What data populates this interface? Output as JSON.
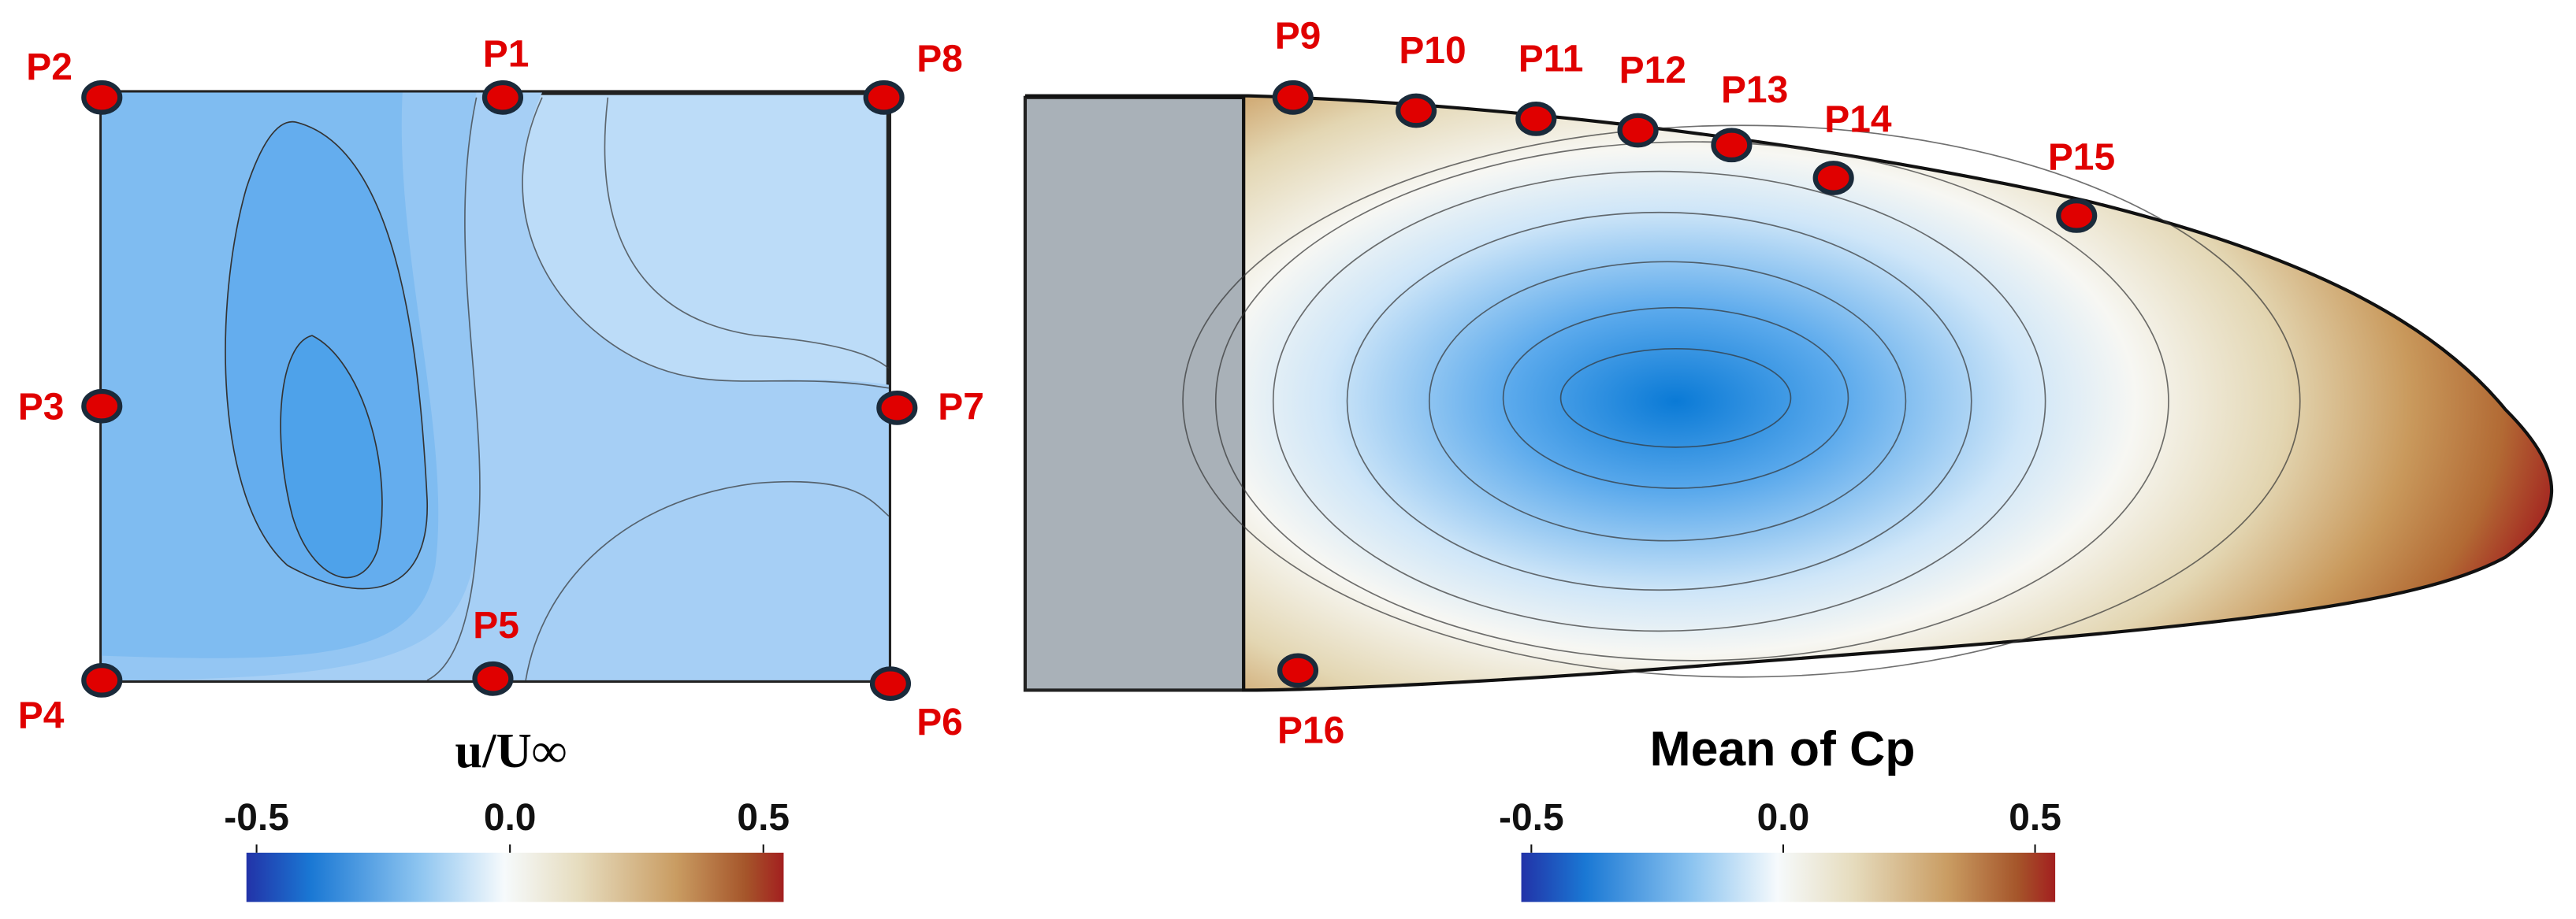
{
  "left_panel": {
    "points": [
      "P1",
      "P2",
      "P3",
      "P4",
      "P5",
      "P6",
      "P7",
      "P8"
    ],
    "colorbar": {
      "title": "u/U∞",
      "range": [
        -0.52,
        0.54
      ],
      "ticks": [
        -0.5,
        {
          "value": 0,
          "label": "0.0"
        },
        0.5
      ]
    }
  },
  "right_panel": {
    "points": [
      "P9",
      "P10",
      "P11",
      "P12",
      "P13",
      "P14",
      "P15",
      "P16"
    ],
    "colorbar": {
      "title": "Mean of Cp",
      "range": [
        -0.52,
        0.54
      ],
      "ticks": [
        -0.5,
        {
          "value": 0,
          "label": "0.0"
        },
        0.5
      ]
    }
  }
}
